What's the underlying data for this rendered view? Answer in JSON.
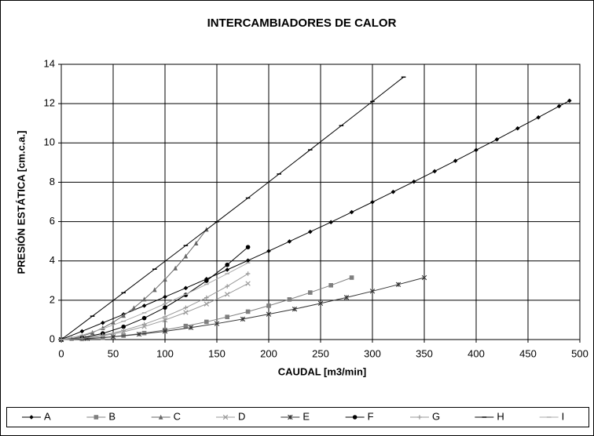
{
  "chart_data": {
    "type": "line",
    "title": "INTERCAMBIADORES DE CALOR",
    "x_label": "CAUDAL [m3/min]",
    "y_label": "PRESIÓN ESTÁTICA [cm.c.a.]",
    "xlim": [
      0,
      500
    ],
    "ylim": [
      0,
      14
    ],
    "xticks": [
      0,
      50,
      100,
      150,
      200,
      250,
      300,
      350,
      400,
      450,
      500
    ],
    "yticks": [
      0,
      2,
      4,
      6,
      8,
      10,
      12,
      14
    ],
    "grid": true,
    "legend": "bottom",
    "series": [
      {
        "name": "A",
        "color": "#000000",
        "marker": "diamond",
        "x": [
          0,
          20,
          40,
          60,
          80,
          100,
          120,
          140,
          160,
          180,
          200,
          220,
          240,
          260,
          280,
          300,
          320,
          340,
          360,
          380,
          400,
          420,
          440,
          460,
          480,
          490
        ],
        "values": [
          0,
          0.42,
          0.85,
          1.28,
          1.72,
          2.17,
          2.62,
          3.08,
          3.55,
          4.02,
          4.5,
          4.99,
          5.48,
          5.97,
          6.48,
          6.99,
          7.51,
          8.03,
          8.56,
          9.09,
          9.64,
          10.18,
          10.74,
          11.3,
          11.87,
          12.15
        ]
      },
      {
        "name": "B",
        "color": "#7f7f7f",
        "marker": "square",
        "x": [
          0,
          20,
          40,
          60,
          80,
          100,
          120,
          140,
          160,
          180,
          200,
          220,
          240,
          260,
          280
        ],
        "values": [
          0,
          0.03,
          0.09,
          0.2,
          0.33,
          0.49,
          0.69,
          0.9,
          1.15,
          1.42,
          1.72,
          2.04,
          2.39,
          2.76,
          3.15
        ]
      },
      {
        "name": "C",
        "color": "#666666",
        "marker": "triangle",
        "x": [
          0,
          10,
          20,
          30,
          40,
          50,
          60,
          70,
          80,
          90,
          100,
          110,
          120,
          130,
          140
        ],
        "values": [
          0,
          0.05,
          0.17,
          0.35,
          0.59,
          0.88,
          1.22,
          1.61,
          2.05,
          2.53,
          3.06,
          3.63,
          4.24,
          4.9,
          5.6
        ]
      },
      {
        "name": "D",
        "color": "#999999",
        "marker": "x",
        "x": [
          0,
          20,
          40,
          60,
          80,
          100,
          120,
          140,
          160,
          180
        ],
        "values": [
          0,
          0.05,
          0.19,
          0.39,
          0.66,
          0.99,
          1.38,
          1.81,
          2.3,
          2.85
        ]
      },
      {
        "name": "E",
        "color": "#333333",
        "marker": "asterisk",
        "x": [
          0,
          25,
          50,
          75,
          100,
          125,
          150,
          175,
          200,
          225,
          250,
          275,
          300,
          325,
          350
        ],
        "values": [
          0,
          0.05,
          0.14,
          0.27,
          0.42,
          0.61,
          0.81,
          1.04,
          1.29,
          1.55,
          1.84,
          2.14,
          2.46,
          2.8,
          3.15
        ]
      },
      {
        "name": "F",
        "color": "#000000",
        "marker": "circle",
        "x": [
          0,
          20,
          40,
          60,
          80,
          100,
          120,
          140,
          160,
          180
        ],
        "values": [
          0,
          0.09,
          0.31,
          0.65,
          1.09,
          1.63,
          2.27,
          2.99,
          3.8,
          4.7
        ]
      },
      {
        "name": "G",
        "color": "#999999",
        "marker": "plus",
        "x": [
          0,
          20,
          40,
          60,
          80,
          100,
          120,
          140,
          160,
          180
        ],
        "values": [
          0,
          0.06,
          0.22,
          0.46,
          0.78,
          1.16,
          1.62,
          2.13,
          2.71,
          3.35
        ]
      },
      {
        "name": "H",
        "color": "#000000",
        "marker": "dash",
        "x": [
          0,
          30,
          60,
          90,
          120,
          150,
          180,
          210,
          240,
          270,
          300,
          330
        ],
        "values": [
          0,
          1.19,
          2.38,
          3.58,
          4.78,
          5.99,
          7.2,
          8.42,
          9.65,
          10.88,
          12.11,
          13.35
        ]
      },
      {
        "name": "I",
        "color": "#aaaaaa",
        "marker": "dash",
        "x": [
          0,
          20,
          40,
          60,
          80,
          100,
          120,
          140,
          160,
          180
        ],
        "values": [
          0,
          0.22,
          0.55,
          0.93,
          1.36,
          1.82,
          2.3,
          2.81,
          3.35,
          3.9
        ]
      }
    ]
  }
}
